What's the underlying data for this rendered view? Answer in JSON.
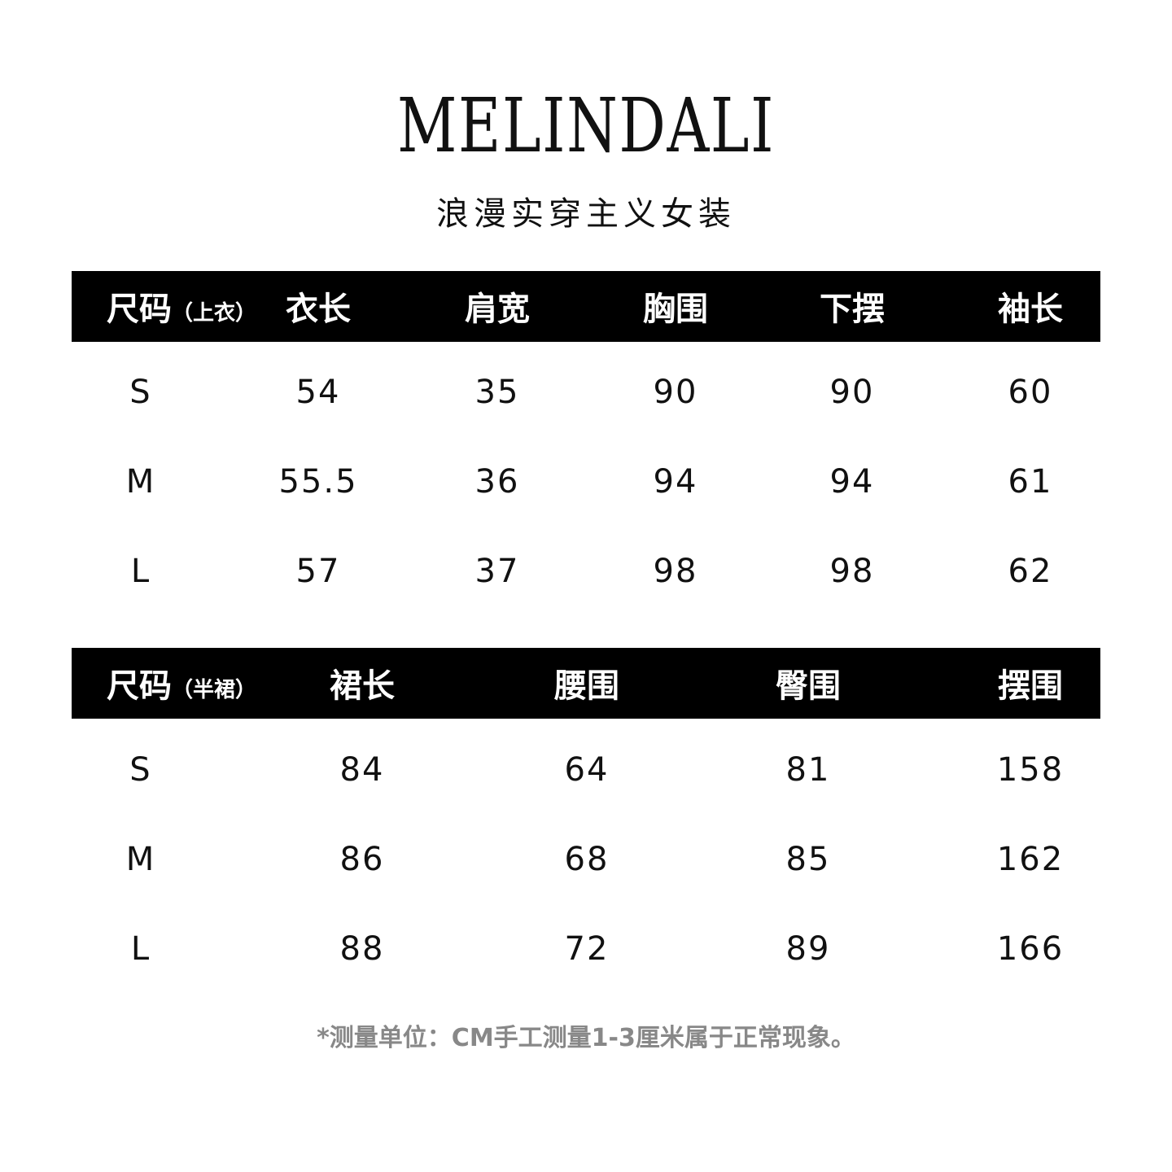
{
  "brand": {
    "logo": "MELINDALI",
    "tagline": "浪漫实穿主义女装"
  },
  "top_table": {
    "size_label": "尺码",
    "size_note": "（上衣）",
    "headers": [
      "衣长",
      "肩宽",
      "胸围",
      "下摆",
      "袖长"
    ],
    "rows": [
      [
        "S",
        "54",
        "35",
        "90",
        "90",
        "60"
      ],
      [
        "M",
        "55.5",
        "36",
        "94",
        "94",
        "61"
      ],
      [
        "L",
        "57",
        "37",
        "98",
        "98",
        "62"
      ]
    ]
  },
  "bottom_table": {
    "size_label": "尺码",
    "size_note": "（半裙）",
    "headers": [
      "裙长",
      "腰围",
      "臀围",
      "摆围"
    ],
    "rows": [
      [
        "S",
        "84",
        "64",
        "81",
        "158"
      ],
      [
        "M",
        "86",
        "68",
        "85",
        "162"
      ],
      [
        "L",
        "88",
        "72",
        "89",
        "166"
      ]
    ]
  },
  "note": "*测量单位：CM手工测量1-3厘米属于正常现象。"
}
